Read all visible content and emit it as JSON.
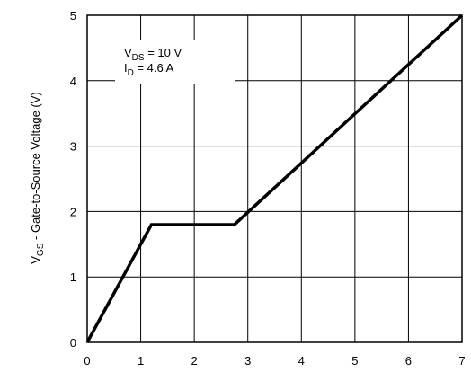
{
  "chart_data": {
    "type": "line",
    "title": "",
    "xlabel": "",
    "ylabel": {
      "main": "V",
      "sub": "GS",
      "rest": " - Gate-to-Source Voltage (V)"
    },
    "xlim": [
      0,
      7
    ],
    "ylim": [
      0,
      5
    ],
    "xticks": [
      "0",
      "1",
      "2",
      "3",
      "4",
      "5",
      "6",
      "7"
    ],
    "yticks": [
      "0",
      "1",
      "2",
      "3",
      "4",
      "5"
    ],
    "grid": true,
    "series": [
      {
        "x": [
          0,
          1.2,
          2.75,
          7
        ],
        "y": [
          0,
          1.8,
          1.8,
          5
        ]
      }
    ],
    "annotations": [
      {
        "main": "V",
        "sub": "DS",
        "rest": " = 10 V"
      },
      {
        "main": "I",
        "sub": "D",
        "rest": " = 4.6 A"
      }
    ]
  }
}
